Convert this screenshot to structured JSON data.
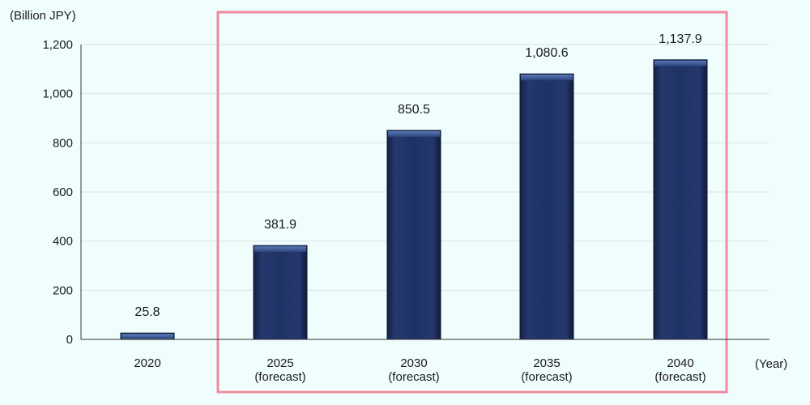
{
  "chart_data": {
    "type": "bar",
    "categories": [
      {
        "line1": "2020",
        "line2": ""
      },
      {
        "line1": "2025",
        "line2": "(forecast)"
      },
      {
        "line1": "2030",
        "line2": "(forecast)"
      },
      {
        "line1": "2035",
        "line2": "(forecast)"
      },
      {
        "line1": "2040",
        "line2": "(forecast)"
      }
    ],
    "values": [
      25.8,
      381.9,
      850.5,
      1080.6,
      1137.9
    ],
    "value_labels": [
      "25.8",
      "381.9",
      "850.5",
      "1,080.6",
      "1,137.9"
    ],
    "y_unit_label": "(Billion JPY)",
    "x_unit_label": "(Year)",
    "ylim": [
      0,
      1200
    ],
    "y_ticks": [
      0,
      200,
      400,
      600,
      800,
      1000,
      1200
    ],
    "y_tick_labels": [
      "0",
      "200",
      "400",
      "600",
      "800",
      "1,000",
      "1,200"
    ],
    "grid": true,
    "legend": "none",
    "highlight_categories": [
      1,
      4
    ],
    "colors": {
      "bar": "#1e3264",
      "bar_top": "#4a6aa8",
      "highlight_border": "#f08aa0",
      "grid": "#d8e4e4",
      "axis": "#333333",
      "background": "#f0fdfd"
    }
  }
}
